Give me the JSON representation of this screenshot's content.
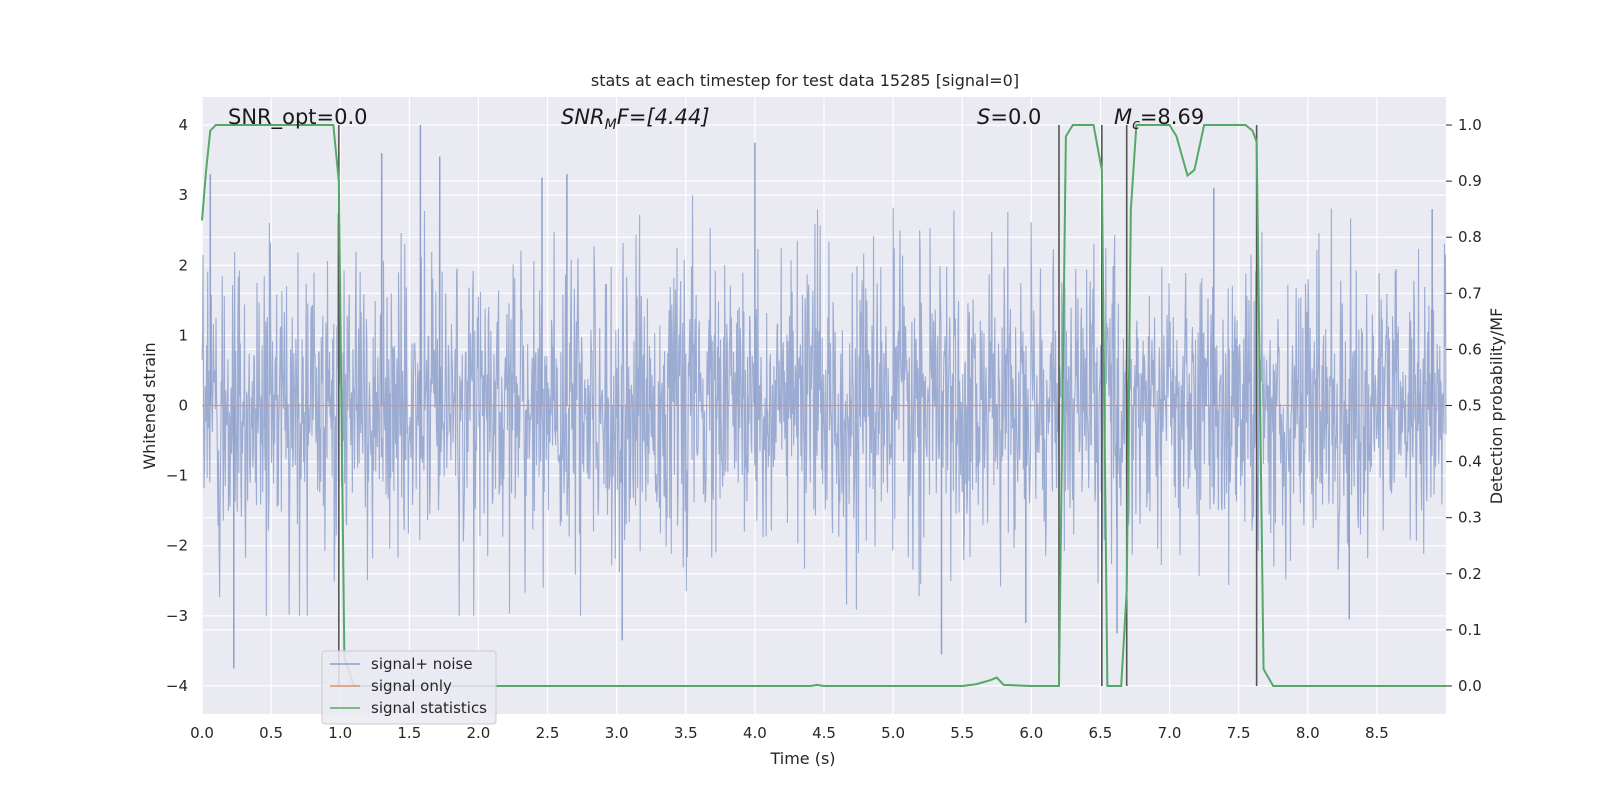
{
  "chart_data": {
    "type": "line",
    "title": "stats at each timestep for test data 15285 [signal=0]",
    "xlabel": "Time (s)",
    "ylabel_left": "Whitened strain",
    "ylabel_right": "Detection probability/MF",
    "xlim": [
      0.0,
      9.0
    ],
    "ylim_left": [
      -4.4,
      4.4
    ],
    "ylim_right": [
      -0.05,
      1.05
    ],
    "xticks": [
      "0.0",
      "0.5",
      "1.0",
      "1.5",
      "2.0",
      "2.5",
      "3.0",
      "3.5",
      "4.0",
      "4.5",
      "5.0",
      "5.5",
      "6.0",
      "6.5",
      "7.0",
      "7.5",
      "8.0",
      "8.5"
    ],
    "yticks_left": [
      "4",
      "3",
      "2",
      "1",
      "0",
      "−1",
      "−2",
      "−3",
      "−4"
    ],
    "yticks_right": [
      "1.0",
      "0.9",
      "0.8",
      "0.7",
      "0.6",
      "0.5",
      "0.4",
      "0.3",
      "0.2",
      "0.1",
      "0.0"
    ],
    "grid": true,
    "legend_position": "lower-left",
    "legend": [
      "signal+ noise",
      "signal only",
      "signal statistics"
    ],
    "annotations": {
      "snr_opt": "SNR_opt=0.0",
      "snr_mf_main": "SNR",
      "snr_mf_sub": "M",
      "snr_mf_tail": "F=[4.44]",
      "s_main": "S",
      "s_tail": "=0.0",
      "mc_main": "M",
      "mc_sub": "c",
      "mc_tail": "=8.69"
    },
    "vertical_markers": [
      0.99,
      6.2,
      6.51,
      6.69,
      7.63
    ],
    "series": [
      {
        "name": "signal+ noise",
        "color": "#8da0cb",
        "axis": "left",
        "description_type": "noise",
        "amplitude_typical": 1.5,
        "peaks": [
          [
            0.06,
            3.3
          ],
          [
            0.23,
            -3.75
          ],
          [
            1.3,
            3.6
          ],
          [
            1.58,
            4.0
          ],
          [
            1.72,
            3.55
          ],
          [
            2.46,
            3.25
          ],
          [
            2.64,
            3.3
          ],
          [
            3.04,
            -3.35
          ],
          [
            4.0,
            3.75
          ],
          [
            5.35,
            -3.55
          ],
          [
            5.96,
            -3.1
          ],
          [
            6.62,
            -3.25
          ],
          [
            7.32,
            3.1
          ],
          [
            8.3,
            -3.05
          ],
          [
            8.9,
            2.8
          ]
        ]
      },
      {
        "name": "signal only",
        "color": "#e58e6f",
        "axis": "left",
        "x": [
          0.0,
          9.0
        ],
        "y": [
          0.0,
          0.0
        ]
      },
      {
        "name": "signal statistics",
        "color": "#55a868",
        "axis": "right",
        "x": [
          0.0,
          0.03,
          0.06,
          0.1,
          0.15,
          0.2,
          0.5,
          0.9,
          0.95,
          0.99,
          1.03,
          1.1,
          2.0,
          3.0,
          4.0,
          4.4,
          4.45,
          4.5,
          5.5,
          5.6,
          5.7,
          5.75,
          5.8,
          6.0,
          6.2,
          6.25,
          6.3,
          6.35,
          6.45,
          6.51,
          6.55,
          6.6,
          6.65,
          6.69,
          6.72,
          6.76,
          6.8,
          6.9,
          7.0,
          7.05,
          7.13,
          7.18,
          7.25,
          7.3,
          7.55,
          7.6,
          7.63,
          7.68,
          7.75,
          8.0,
          8.5,
          9.0
        ],
        "y": [
          0.83,
          0.92,
          0.99,
          1.0,
          1.0,
          1.0,
          1.0,
          1.0,
          1.0,
          0.9,
          0.05,
          0.0,
          0.0,
          0.0,
          0.0,
          0.0,
          0.002,
          0.0,
          0.0,
          0.003,
          0.01,
          0.015,
          0.002,
          0.0,
          0.0,
          0.98,
          1.0,
          1.0,
          1.0,
          0.92,
          0.0,
          0.0,
          0.0,
          0.17,
          0.85,
          1.0,
          1.0,
          1.0,
          1.0,
          0.98,
          0.91,
          0.92,
          1.0,
          1.0,
          1.0,
          0.99,
          0.97,
          0.03,
          0.0,
          0.0,
          0.0,
          0.0
        ]
      }
    ]
  }
}
